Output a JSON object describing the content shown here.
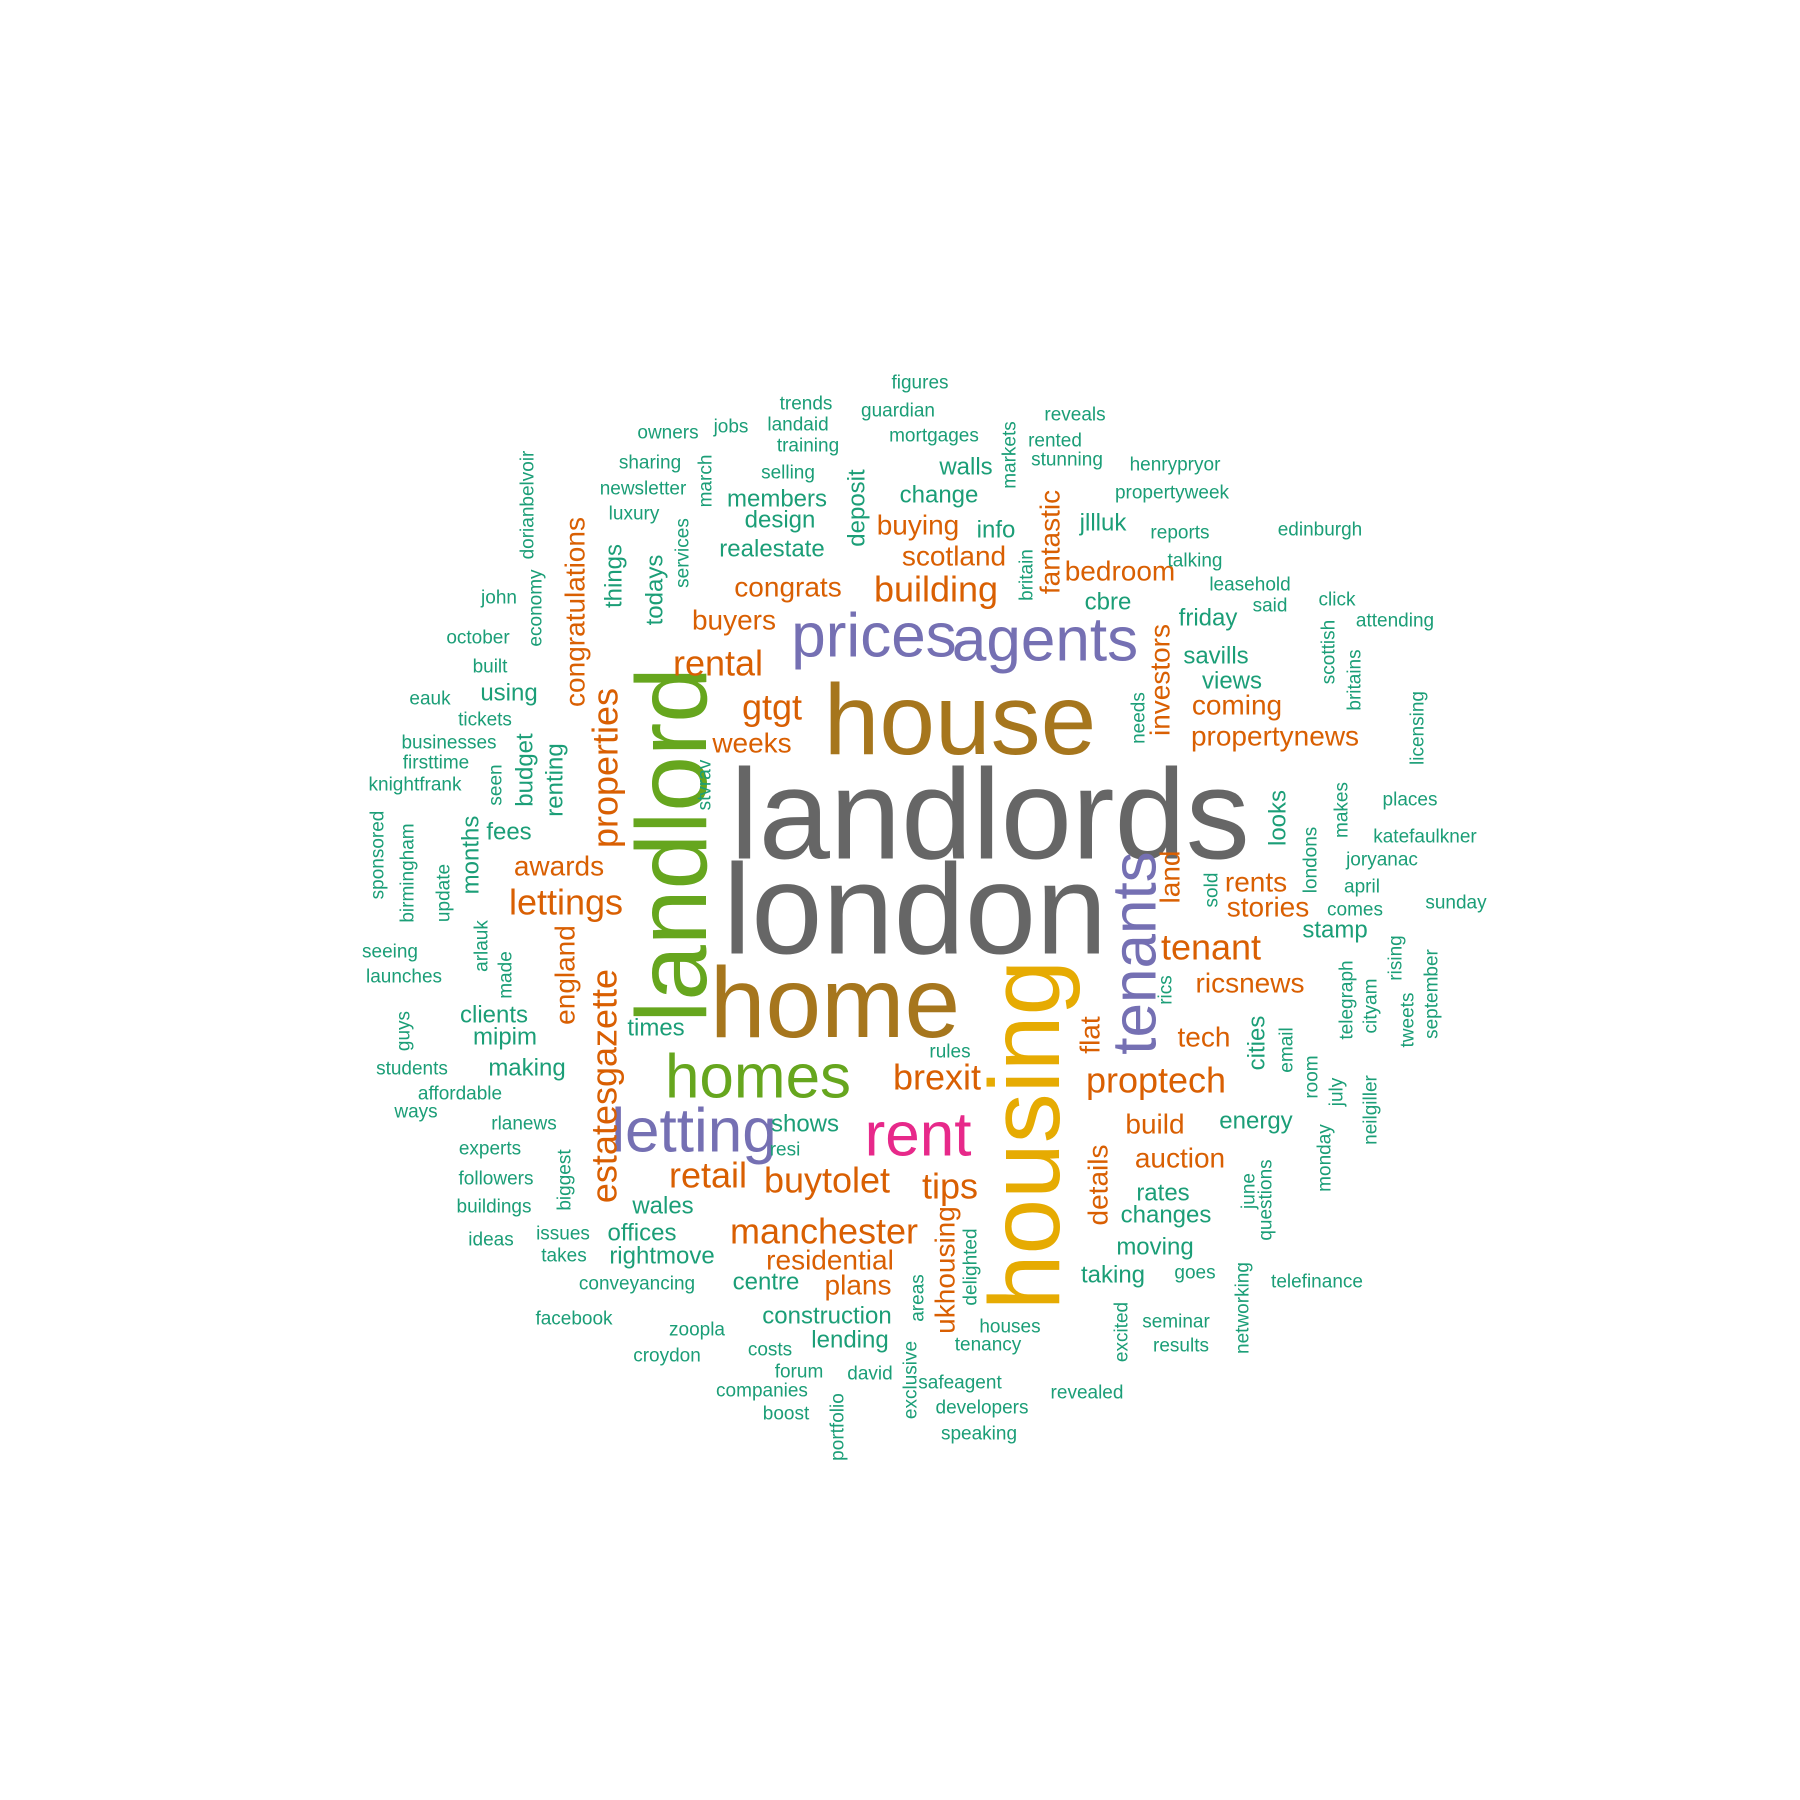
{
  "palette": {
    "gray": "#666666",
    "brown": "#A6761D",
    "green": "#66A61E",
    "yellow": "#E6AB02",
    "magenta": "#E7298A",
    "purple": "#7570B3",
    "orange": "#D95F02",
    "teal": "#1B9E77"
  },
  "words": [
    {
      "text": "landlords",
      "tier": 1,
      "color": "gray"
    },
    {
      "text": "london",
      "tier": 1,
      "color": "gray"
    },
    {
      "text": "house",
      "tier": 2,
      "color": "brown"
    },
    {
      "text": "home",
      "tier": 2,
      "color": "brown"
    },
    {
      "text": "housing",
      "tier": 2,
      "color": "yellow"
    },
    {
      "text": "landlord",
      "tier": 2,
      "color": "green"
    },
    {
      "text": "homes",
      "tier": 3,
      "color": "green"
    },
    {
      "text": "rent",
      "tier": 3,
      "color": "magenta"
    },
    {
      "text": "agents",
      "tier": 3,
      "color": "purple"
    },
    {
      "text": "prices",
      "tier": 3,
      "color": "purple"
    },
    {
      "text": "tenants",
      "tier": 3,
      "color": "purple"
    },
    {
      "text": "letting",
      "tier": 3,
      "color": "purple"
    },
    {
      "text": "building",
      "tier": 4,
      "color": "orange"
    },
    {
      "text": "gtgt",
      "tier": 4,
      "color": "orange"
    },
    {
      "text": "rental",
      "tier": 4,
      "color": "orange"
    },
    {
      "text": "properties",
      "tier": 4,
      "color": "orange"
    },
    {
      "text": "lettings",
      "tier": 4,
      "color": "orange"
    },
    {
      "text": "estatesgazette",
      "tier": 4,
      "color": "orange"
    },
    {
      "text": "brexit",
      "tier": 4,
      "color": "orange"
    },
    {
      "text": "proptech",
      "tier": 4,
      "color": "orange"
    },
    {
      "text": "tenant",
      "tier": 4,
      "color": "orange"
    },
    {
      "text": "manchester",
      "tier": 4,
      "color": "orange"
    },
    {
      "text": "buytolet",
      "tier": 4,
      "color": "orange"
    },
    {
      "text": "retail",
      "tier": 4,
      "color": "orange"
    },
    {
      "text": "tips",
      "tier": 4,
      "color": "orange"
    },
    {
      "text": "residential",
      "tier": 5,
      "color": "orange"
    },
    {
      "text": "ricsnews",
      "tier": 5,
      "color": "orange"
    },
    {
      "text": "auction",
      "tier": 5,
      "color": "orange"
    },
    {
      "text": "build",
      "tier": 5,
      "color": "orange"
    },
    {
      "text": "tech",
      "tier": 5,
      "color": "orange"
    },
    {
      "text": "flat",
      "tier": 5,
      "color": "orange"
    },
    {
      "text": "investors",
      "tier": 5,
      "color": "orange"
    },
    {
      "text": "propertynews",
      "tier": 5,
      "color": "orange"
    },
    {
      "text": "coming",
      "tier": 5,
      "color": "orange"
    },
    {
      "text": "bedroom",
      "tier": 5,
      "color": "orange"
    },
    {
      "text": "scotland",
      "tier": 5,
      "color": "orange"
    },
    {
      "text": "congrats",
      "tier": 5,
      "color": "orange"
    },
    {
      "text": "buyers",
      "tier": 5,
      "color": "orange"
    },
    {
      "text": "weeks",
      "tier": 5,
      "color": "orange"
    },
    {
      "text": "awards",
      "tier": 5,
      "color": "orange"
    },
    {
      "text": "buying",
      "tier": 5,
      "color": "orange"
    },
    {
      "text": "fantastic",
      "tier": 5,
      "color": "orange"
    },
    {
      "text": "congratulations",
      "tier": 5,
      "color": "orange"
    },
    {
      "text": "england",
      "tier": 5,
      "color": "orange"
    },
    {
      "text": "plans",
      "tier": 5,
      "color": "orange"
    },
    {
      "text": "ukhousing",
      "tier": 5,
      "color": "orange"
    },
    {
      "text": "stories",
      "tier": 5,
      "color": "orange"
    },
    {
      "text": "rents",
      "tier": 5,
      "color": "orange"
    },
    {
      "text": "land",
      "tier": 5,
      "color": "orange"
    },
    {
      "text": "details",
      "tier": 5,
      "color": "orange"
    },
    {
      "text": "realestate",
      "tier": 6,
      "color": "teal"
    },
    {
      "text": "change",
      "tier": 6,
      "color": "teal"
    },
    {
      "text": "savills",
      "tier": 6,
      "color": "teal"
    },
    {
      "text": "friday",
      "tier": 6,
      "color": "teal"
    },
    {
      "text": "cbre",
      "tier": 6,
      "color": "teal"
    },
    {
      "text": "renting",
      "tier": 6,
      "color": "teal"
    },
    {
      "text": "things",
      "tier": 6,
      "color": "teal"
    },
    {
      "text": "todays",
      "tier": 6,
      "color": "teal"
    },
    {
      "text": "deposit",
      "tier": 6,
      "color": "teal"
    },
    {
      "text": "design",
      "tier": 6,
      "color": "teal"
    },
    {
      "text": "members",
      "tier": 6,
      "color": "teal"
    },
    {
      "text": "walls",
      "tier": 6,
      "color": "teal"
    },
    {
      "text": "info",
      "tier": 6,
      "color": "teal"
    },
    {
      "text": "jllluk",
      "tier": 6,
      "color": "teal"
    },
    {
      "text": "fees",
      "tier": 6,
      "color": "teal"
    },
    {
      "text": "budget",
      "tier": 6,
      "color": "teal"
    },
    {
      "text": "mipim",
      "tier": 6,
      "color": "teal"
    },
    {
      "text": "making",
      "tier": 6,
      "color": "teal"
    },
    {
      "text": "times",
      "tier": 6,
      "color": "teal"
    },
    {
      "text": "shows",
      "tier": 6,
      "color": "teal"
    },
    {
      "text": "wales",
      "tier": 6,
      "color": "teal"
    },
    {
      "text": "offices",
      "tier": 6,
      "color": "teal"
    },
    {
      "text": "rightmove",
      "tier": 6,
      "color": "teal"
    },
    {
      "text": "centre",
      "tier": 6,
      "color": "teal"
    },
    {
      "text": "construction",
      "tier": 6,
      "color": "teal"
    },
    {
      "text": "lending",
      "tier": 6,
      "color": "teal"
    },
    {
      "text": "taking",
      "tier": 6,
      "color": "teal"
    },
    {
      "text": "moving",
      "tier": 6,
      "color": "teal"
    },
    {
      "text": "changes",
      "tier": 6,
      "color": "teal"
    },
    {
      "text": "rates",
      "tier": 6,
      "color": "teal"
    },
    {
      "text": "energy",
      "tier": 6,
      "color": "teal"
    },
    {
      "text": "cities",
      "tier": 6,
      "color": "teal"
    },
    {
      "text": "looks",
      "tier": 6,
      "color": "teal"
    },
    {
      "text": "stamp",
      "tier": 6,
      "color": "teal"
    },
    {
      "text": "views",
      "tier": 6,
      "color": "teal"
    },
    {
      "text": "months",
      "tier": 6,
      "color": "teal"
    },
    {
      "text": "using",
      "tier": 6,
      "color": "teal"
    },
    {
      "text": "clients",
      "tier": 6,
      "color": "teal"
    },
    {
      "text": "selling",
      "tier": 7,
      "color": "teal"
    },
    {
      "text": "training",
      "tier": 7,
      "color": "teal"
    },
    {
      "text": "mortgages",
      "tier": 7,
      "color": "teal"
    },
    {
      "text": "guardian",
      "tier": 7,
      "color": "teal"
    },
    {
      "text": "landaid",
      "tier": 7,
      "color": "teal"
    },
    {
      "text": "trends",
      "tier": 7,
      "color": "teal"
    },
    {
      "text": "figures",
      "tier": 7,
      "color": "teal"
    },
    {
      "text": "reveals",
      "tier": 7,
      "color": "teal"
    },
    {
      "text": "rented",
      "tier": 7,
      "color": "teal"
    },
    {
      "text": "stunning",
      "tier": 7,
      "color": "teal"
    },
    {
      "text": "henrypryor",
      "tier": 7,
      "color": "teal"
    },
    {
      "text": "propertyweek",
      "tier": 7,
      "color": "teal"
    },
    {
      "text": "reports",
      "tier": 7,
      "color": "teal"
    },
    {
      "text": "edinburgh",
      "tier": 7,
      "color": "teal"
    },
    {
      "text": "talking",
      "tier": 7,
      "color": "teal"
    },
    {
      "text": "leasehold",
      "tier": 7,
      "color": "teal"
    },
    {
      "text": "said",
      "tier": 7,
      "color": "teal"
    },
    {
      "text": "click",
      "tier": 7,
      "color": "teal"
    },
    {
      "text": "attending",
      "tier": 7,
      "color": "teal"
    },
    {
      "text": "owners",
      "tier": 7,
      "color": "teal"
    },
    {
      "text": "jobs",
      "tier": 7,
      "color": "teal"
    },
    {
      "text": "sharing",
      "tier": 7,
      "color": "teal"
    },
    {
      "text": "newsletter",
      "tier": 7,
      "color": "teal"
    },
    {
      "text": "luxury",
      "tier": 7,
      "color": "teal"
    },
    {
      "text": "march",
      "tier": 7,
      "color": "teal"
    },
    {
      "text": "services",
      "tier": 7,
      "color": "teal"
    },
    {
      "text": "markets",
      "tier": 7,
      "color": "teal"
    },
    {
      "text": "britain",
      "tier": 7,
      "color": "teal"
    },
    {
      "text": "dorianbelvoir",
      "tier": 7,
      "color": "teal"
    },
    {
      "text": "economy",
      "tier": 7,
      "color": "teal"
    },
    {
      "text": "john",
      "tier": 7,
      "color": "teal"
    },
    {
      "text": "october",
      "tier": 7,
      "color": "teal"
    },
    {
      "text": "built",
      "tier": 7,
      "color": "teal"
    },
    {
      "text": "eauk",
      "tier": 7,
      "color": "teal"
    },
    {
      "text": "tickets",
      "tier": 7,
      "color": "teal"
    },
    {
      "text": "businesses",
      "tier": 7,
      "color": "teal"
    },
    {
      "text": "firsttime",
      "tier": 7,
      "color": "teal"
    },
    {
      "text": "knightfrank",
      "tier": 7,
      "color": "teal"
    },
    {
      "text": "seen",
      "tier": 7,
      "color": "teal"
    },
    {
      "text": "stvrav",
      "tier": 7,
      "color": "teal"
    },
    {
      "text": "sponsored",
      "tier": 7,
      "color": "teal"
    },
    {
      "text": "birmingham",
      "tier": 7,
      "color": "teal"
    },
    {
      "text": "update",
      "tier": 7,
      "color": "teal"
    },
    {
      "text": "arlauk",
      "tier": 7,
      "color": "teal"
    },
    {
      "text": "made",
      "tier": 7,
      "color": "teal"
    },
    {
      "text": "seeing",
      "tier": 7,
      "color": "teal"
    },
    {
      "text": "launches",
      "tier": 7,
      "color": "teal"
    },
    {
      "text": "guys",
      "tier": 7,
      "color": "teal"
    },
    {
      "text": "students",
      "tier": 7,
      "color": "teal"
    },
    {
      "text": "affordable",
      "tier": 7,
      "color": "teal"
    },
    {
      "text": "ways",
      "tier": 7,
      "color": "teal"
    },
    {
      "text": "rlanews",
      "tier": 7,
      "color": "teal"
    },
    {
      "text": "experts",
      "tier": 7,
      "color": "teal"
    },
    {
      "text": "followers",
      "tier": 7,
      "color": "teal"
    },
    {
      "text": "buildings",
      "tier": 7,
      "color": "teal"
    },
    {
      "text": "ideas",
      "tier": 7,
      "color": "teal"
    },
    {
      "text": "issues",
      "tier": 7,
      "color": "teal"
    },
    {
      "text": "takes",
      "tier": 7,
      "color": "teal"
    },
    {
      "text": "biggest",
      "tier": 7,
      "color": "teal"
    },
    {
      "text": "resi",
      "tier": 7,
      "color": "teal"
    },
    {
      "text": "conveyancing",
      "tier": 7,
      "color": "teal"
    },
    {
      "text": "facebook",
      "tier": 7,
      "color": "teal"
    },
    {
      "text": "zoopla",
      "tier": 7,
      "color": "teal"
    },
    {
      "text": "croydon",
      "tier": 7,
      "color": "teal"
    },
    {
      "text": "costs",
      "tier": 7,
      "color": "teal"
    },
    {
      "text": "forum",
      "tier": 7,
      "color": "teal"
    },
    {
      "text": "companies",
      "tier": 7,
      "color": "teal"
    },
    {
      "text": "boost",
      "tier": 7,
      "color": "teal"
    },
    {
      "text": "portfolio",
      "tier": 7,
      "color": "teal"
    },
    {
      "text": "david",
      "tier": 7,
      "color": "teal"
    },
    {
      "text": "exclusive",
      "tier": 7,
      "color": "teal"
    },
    {
      "text": "areas",
      "tier": 7,
      "color": "teal"
    },
    {
      "text": "safeagent",
      "tier": 7,
      "color": "teal"
    },
    {
      "text": "developers",
      "tier": 7,
      "color": "teal"
    },
    {
      "text": "speaking",
      "tier": 7,
      "color": "teal"
    },
    {
      "text": "delighted",
      "tier": 7,
      "color": "teal"
    },
    {
      "text": "tenancy",
      "tier": 7,
      "color": "teal"
    },
    {
      "text": "houses",
      "tier": 7,
      "color": "teal"
    },
    {
      "text": "revealed",
      "tier": 7,
      "color": "teal"
    },
    {
      "text": "excited",
      "tier": 7,
      "color": "teal"
    },
    {
      "text": "seminar",
      "tier": 7,
      "color": "teal"
    },
    {
      "text": "results",
      "tier": 7,
      "color": "teal"
    },
    {
      "text": "goes",
      "tier": 7,
      "color": "teal"
    },
    {
      "text": "networking",
      "tier": 7,
      "color": "teal"
    },
    {
      "text": "telefinance",
      "tier": 7,
      "color": "teal"
    },
    {
      "text": "questions",
      "tier": 7,
      "color": "teal"
    },
    {
      "text": "june",
      "tier": 7,
      "color": "teal"
    },
    {
      "text": "room",
      "tier": 7,
      "color": "teal"
    },
    {
      "text": "email",
      "tier": 7,
      "color": "teal"
    },
    {
      "text": "july",
      "tier": 7,
      "color": "teal"
    },
    {
      "text": "monday",
      "tier": 7,
      "color": "teal"
    },
    {
      "text": "neilgiller",
      "tier": 7,
      "color": "teal"
    },
    {
      "text": "telegraph",
      "tier": 7,
      "color": "teal"
    },
    {
      "text": "cityam",
      "tier": 7,
      "color": "teal"
    },
    {
      "text": "rising",
      "tier": 7,
      "color": "teal"
    },
    {
      "text": "tweets",
      "tier": 7,
      "color": "teal"
    },
    {
      "text": "september",
      "tier": 7,
      "color": "teal"
    },
    {
      "text": "sunday",
      "tier": 7,
      "color": "teal"
    },
    {
      "text": "comes",
      "tier": 7,
      "color": "teal"
    },
    {
      "text": "april",
      "tier": 7,
      "color": "teal"
    },
    {
      "text": "joryanac",
      "tier": 7,
      "color": "teal"
    },
    {
      "text": "katefaulkner",
      "tier": 7,
      "color": "teal"
    },
    {
      "text": "places",
      "tier": 7,
      "color": "teal"
    },
    {
      "text": "makes",
      "tier": 7,
      "color": "teal"
    },
    {
      "text": "londons",
      "tier": 7,
      "color": "teal"
    },
    {
      "text": "licensing",
      "tier": 7,
      "color": "teal"
    },
    {
      "text": "britains",
      "tier": 7,
      "color": "teal"
    },
    {
      "text": "scottish",
      "tier": 7,
      "color": "teal"
    },
    {
      "text": "needs",
      "tier": 7,
      "color": "teal"
    },
    {
      "text": "sold",
      "tier": 7,
      "color": "teal"
    },
    {
      "text": "rics",
      "tier": 7,
      "color": "teal"
    },
    {
      "text": "rules",
      "tier": 7,
      "color": "teal"
    }
  ]
}
